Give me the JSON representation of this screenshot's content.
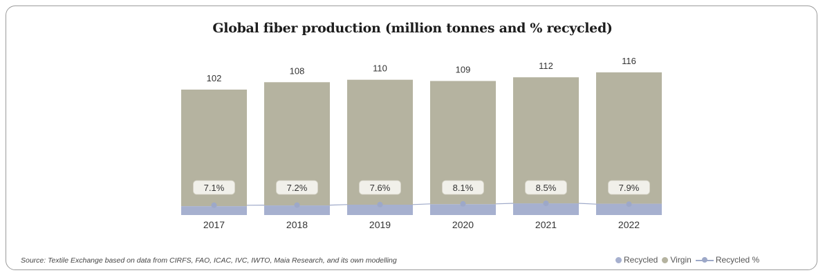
{
  "title": "Global fiber production (million tonnes and % recycled)",
  "source": "Source: Textile Exchange based on data from CIRFS, FAO, ICAC, IVC, IWTO, Maia Research, and its own modelling",
  "legend": {
    "recycled": "Recycled",
    "virgin": "Virgin",
    "recycled_pct": "Recycled %"
  },
  "colors": {
    "virgin": "#b5b3a0",
    "recycled": "#a6b0cf",
    "line": "#9da8c8",
    "label_bg": "#f1f0ea"
  },
  "chart_data": {
    "type": "bar",
    "stacked": true,
    "categories": [
      "2017",
      "2018",
      "2019",
      "2020",
      "2021",
      "2022"
    ],
    "totals": [
      102,
      108,
      110,
      109,
      112,
      116
    ],
    "total_labels": [
      "102",
      "108",
      "110",
      "109",
      "112",
      "116"
    ],
    "series": [
      {
        "name": "Recycled",
        "values": [
          7.2,
          7.8,
          8.4,
          8.8,
          9.5,
          9.2
        ]
      },
      {
        "name": "Virgin",
        "values": [
          94.8,
          100.2,
          101.6,
          100.2,
          102.5,
          106.8
        ]
      }
    ],
    "line_series": {
      "name": "Recycled %",
      "values": [
        7.1,
        7.2,
        7.6,
        8.1,
        8.5,
        7.9
      ],
      "labels": [
        "7.1%",
        "7.2%",
        "7.6%",
        "8.1%",
        "8.5%",
        "7.9%"
      ]
    },
    "ylim": [
      0,
      116
    ],
    "grid": false,
    "legend_position": "bottom-right"
  }
}
